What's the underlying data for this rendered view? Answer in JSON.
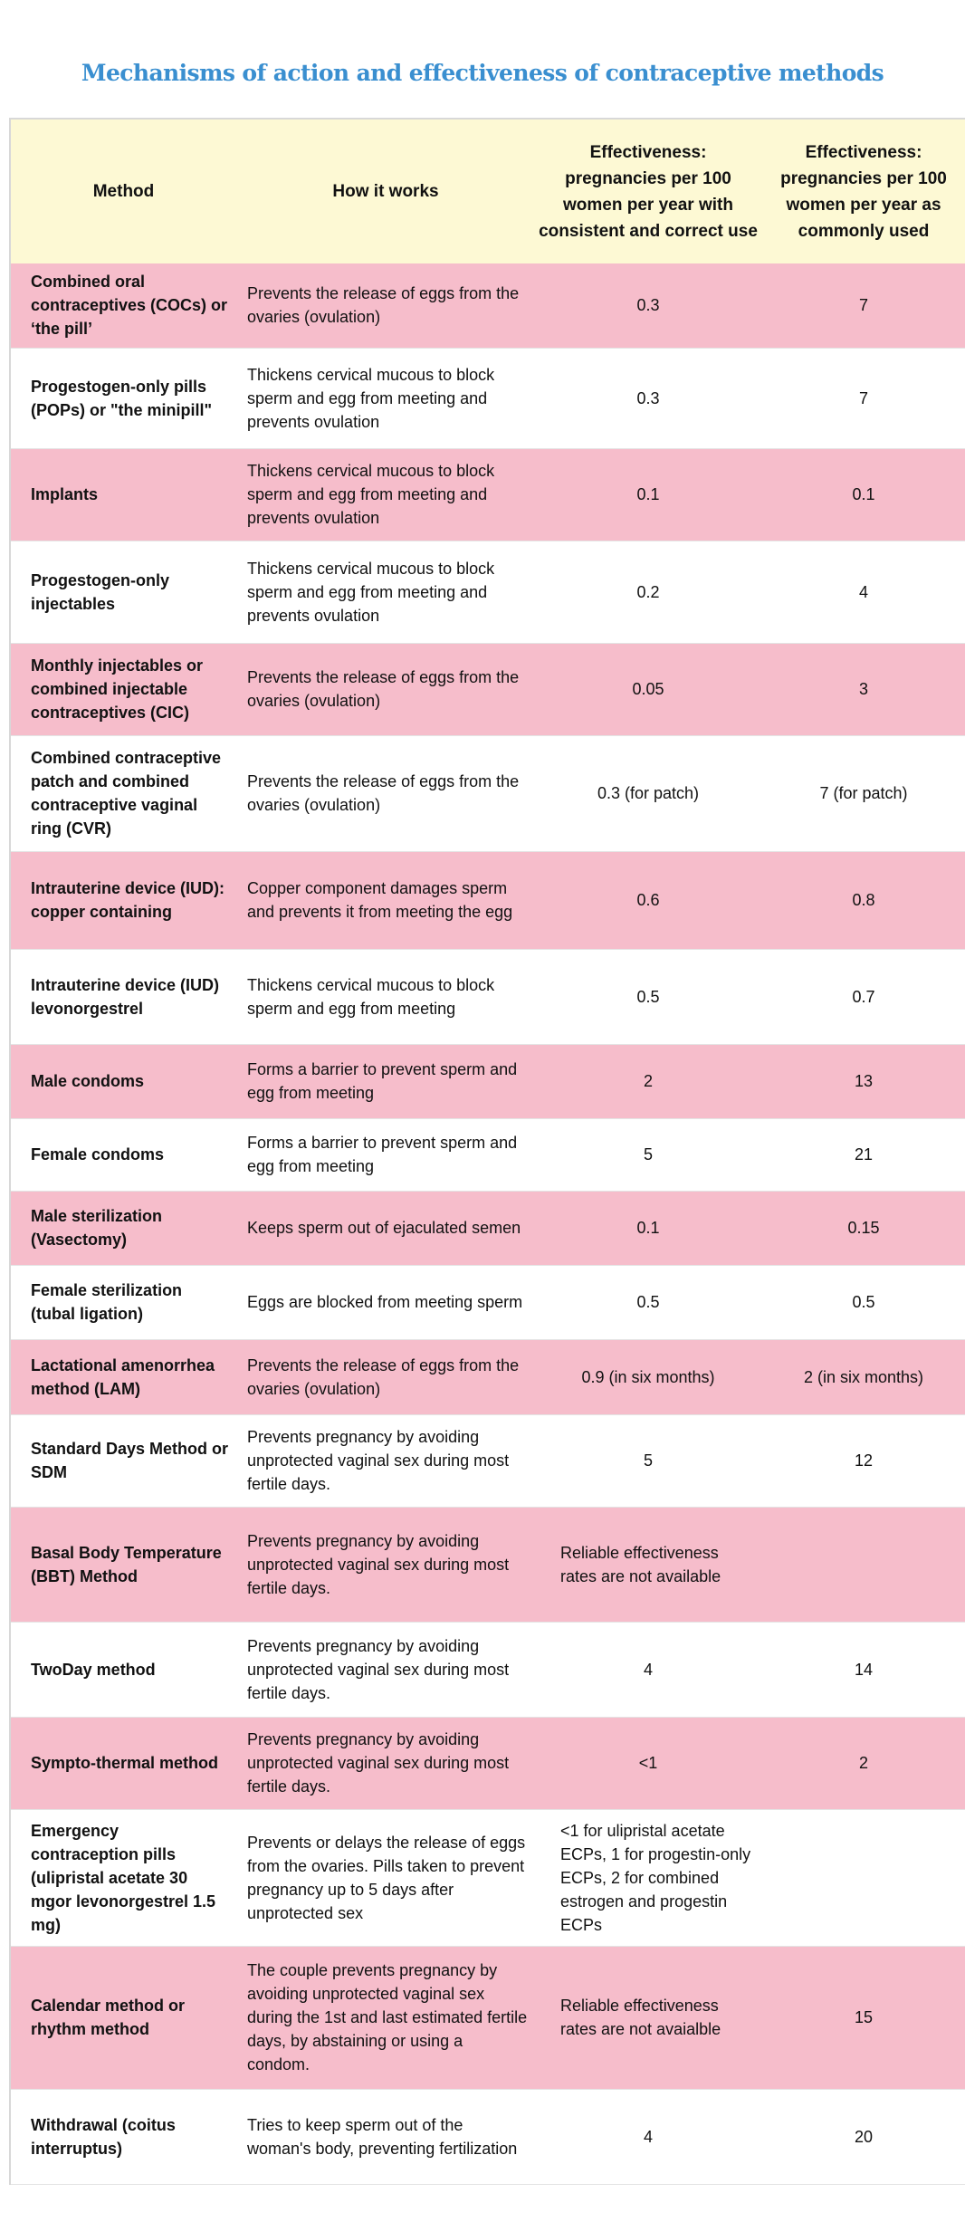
{
  "title": "Mechanisms of action and effectiveness of contraceptive methods",
  "colors": {
    "title": "#3a8fd0",
    "header_bg": "#fdf9d4",
    "row_pink": "#f6bdcb",
    "row_white": "#ffffff"
  },
  "headers": [
    "Method",
    "How it works",
    "Effectiveness: pregnancies per 100 women per year with consistent and correct use",
    "Effectiveness: pregnancies per 100 women per year as commonly used"
  ],
  "rows": [
    {
      "method": "Combined oral contraceptives (COCs) or ‘the pill’",
      "how": "Prevents the release of eggs from the ovaries (ovulation)",
      "correct": "0.3",
      "common": "7"
    },
    {
      "method": "Progestogen-only pills (POPs) or \"the minipill\"",
      "how": "Thickens cervical mucous to block sperm and egg from meeting and prevents ovulation",
      "correct": "0.3",
      "common": "7"
    },
    {
      "method": "Implants",
      "how": "Thickens cervical mucous to block sperm and egg from meeting and prevents ovulation",
      "correct": "0.1",
      "common": "0.1"
    },
    {
      "method": "Progestogen-only injectables",
      "how": "Thickens cervical mucous to block sperm and egg from meeting and prevents ovulation",
      "correct": "0.2",
      "common": "4"
    },
    {
      "method": "Monthly injectables or combined injectable contraceptives (CIC)",
      "how": "Prevents the release of eggs from the ovaries (ovulation)",
      "correct": "0.05",
      "common": "3"
    },
    {
      "method": "Combined contraceptive patch and combined contraceptive vaginal ring (CVR)",
      "how": "Prevents the release of eggs from the ovaries (ovulation)",
      "correct": "0.3 (for patch)",
      "common": "7 (for patch)"
    },
    {
      "method": "Intrauterine device (IUD): copper containing",
      "how": "Copper component damages sperm and prevents it from meeting the egg",
      "correct": "0.6",
      "common": "0.8"
    },
    {
      "method": "Intrauterine device (IUD) levonorgestrel",
      "how": "Thickens cervical mucous to block sperm and egg from meeting",
      "correct": "0.5",
      "common": "0.7"
    },
    {
      "method": "Male condoms",
      "how": "Forms a barrier to prevent sperm and egg from meeting",
      "correct": "2",
      "common": "13"
    },
    {
      "method": "Female condoms",
      "how": "Forms a barrier to prevent sperm and egg from meeting",
      "correct": "5",
      "common": "21"
    },
    {
      "method": "Male sterilization (Vasectomy)",
      "how": "Keeps sperm out of ejaculated semen",
      "correct": "0.1",
      "common": "0.15"
    },
    {
      "method": "Female sterilization (tubal ligation)",
      "how": "Eggs are blocked from meeting sperm",
      "correct": "0.5",
      "common": "0.5"
    },
    {
      "method": "Lactational amenorrhea method (LAM)",
      "how": "Prevents the release of eggs from the ovaries (ovulation)",
      "correct": "0.9 (in six months)",
      "common": "2 (in six months)"
    },
    {
      "method": "Standard Days Method or SDM",
      "how": "Prevents pregnancy by avoiding unprotected vaginal sex during most fertile days.",
      "correct": "5",
      "common": "12"
    },
    {
      "method": "Basal Body Temperature (BBT) Method",
      "how": "Prevents pregnancy by avoiding unprotected vaginal sex during most fertile days.",
      "correct": "Reliable effectiveness rates are not available",
      "common": ""
    },
    {
      "method": "TwoDay method",
      "how": "Prevents pregnancy by avoiding unprotected vaginal sex during most fertile days.",
      "correct": "4",
      "common": "14"
    },
    {
      "method": "Sympto-thermal method",
      "how": "Prevents pregnancy by avoiding unprotected vaginal sex during most fertile days.",
      "correct": "<1",
      "common": "2"
    },
    {
      "method": "Emergency contraception pills (ulipristal acetate 30 mgor levonorgestrel 1.5 mg)",
      "how": "Prevents or delays the release of eggs from the ovaries. Pills taken to prevent pregnancy up to 5 days after unprotected sex",
      "correct": "<1 for ulipristal acetate ECPs, 1 for progestin-only ECPs, 2 for combined estrogen and progestin ECPs",
      "common": ""
    },
    {
      "method": "Calendar method or rhythm method",
      "how": "The couple prevents pregnancy by avoiding unprotected vaginal sex during the 1st and last estimated fertile days, by abstaining or using a condom.",
      "correct": "Reliable effectiveness rates are not avaialble",
      "common": "15"
    },
    {
      "method": "Withdrawal (coitus interruptus)",
      "how": "Tries to keep sperm out of the woman's body, preventing fertilization",
      "correct": "4",
      "common": "20"
    }
  ]
}
